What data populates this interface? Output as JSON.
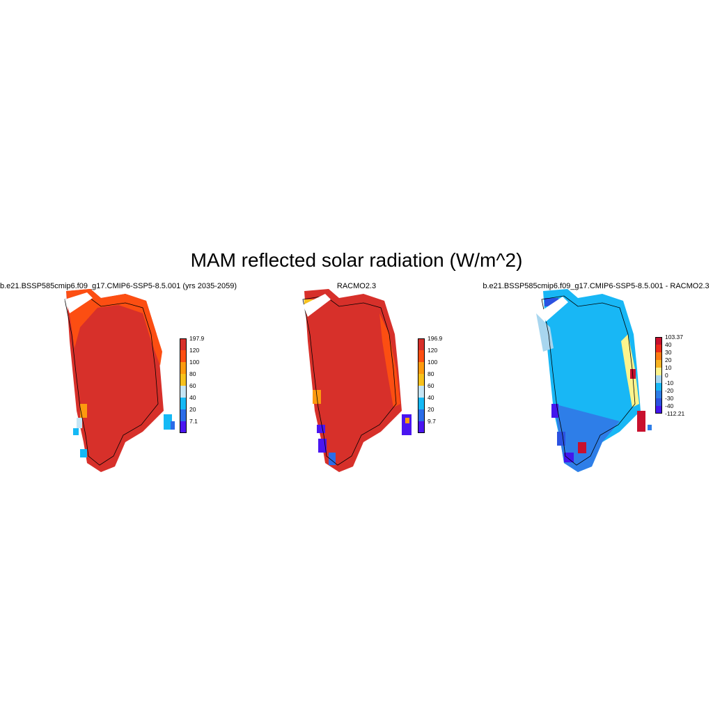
{
  "title": "MAM reflected solar radiation (W/m^2)",
  "panels": [
    {
      "id": "model",
      "title": "b.e21.BSSP585cmip6.f09_g17.CMIP6-SSP5-8.5.001 (yrs 2035-2059)",
      "colorbar": {
        "labels": [
          "197.9",
          "120",
          "100",
          "80",
          "60",
          "40",
          "20",
          "7.1"
        ],
        "colors": [
          "#d7302a",
          "#fc4e12",
          "#fd9a0f",
          "#f7c11d",
          "#c6e5f4",
          "#15b9f5",
          "#2b6ce8",
          "#4a15f0"
        ]
      }
    },
    {
      "id": "racmo",
      "title": "RACMO2.3",
      "colorbar": {
        "labels": [
          "196.9",
          "120",
          "100",
          "80",
          "60",
          "40",
          "20",
          "9.7"
        ],
        "colors": [
          "#d7302a",
          "#fc4e12",
          "#fd9a0f",
          "#f7c11d",
          "#c6e5f4",
          "#15b9f5",
          "#2b6ce8",
          "#4a15f0"
        ]
      }
    },
    {
      "id": "diff",
      "title": "b.e21.BSSP585cmip6.f09_g17.CMIP6-SSP5-8.5.001 - RACMO2.3",
      "colorbar": {
        "labels": [
          "103.37",
          "40",
          "30",
          "20",
          "10",
          "0",
          "-10",
          "-20",
          "-30",
          "-40",
          "-112.21"
        ],
        "colors": [
          "#c8102e",
          "#ee2a1a",
          "#fd7c12",
          "#f8b321",
          "#fcf48d",
          "#a8d6ef",
          "#18b7f5",
          "#2e7ee8",
          "#2b52e1",
          "#4316ee"
        ]
      }
    }
  ]
}
